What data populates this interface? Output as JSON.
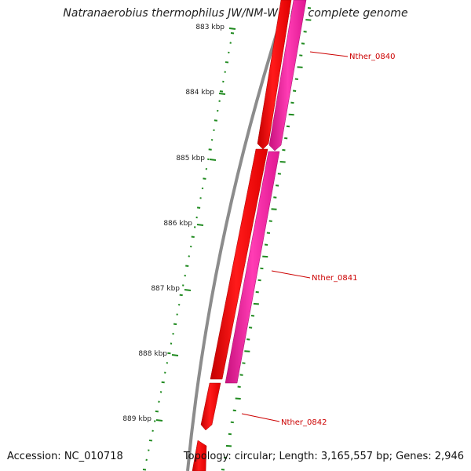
{
  "title": "Natranaerobius thermophilus JW/NM-WN-LF, complete genome",
  "accession": "Accession: NC_010718",
  "topology": "Topology: circular; Length: 3,165,557 bp; Genes: 2,946",
  "scale_labels": [
    "883 kbp",
    "884 kbp",
    "885 kbp",
    "886 kbp",
    "887 kbp",
    "888 kbp",
    "889 kbp"
  ],
  "genes": [
    {
      "name": "Nther_0840",
      "strand": "-",
      "color": "#ff0000"
    },
    {
      "name": "Nther_0840",
      "strand": "+",
      "color": "#ff1fa8"
    },
    {
      "name": "Nther_0841",
      "strand": "-",
      "color": "#ff0000"
    },
    {
      "name": "Nther_0841",
      "strand": "+",
      "color": "#ff1fa8"
    },
    {
      "name": "Nther_0842",
      "strand": "-",
      "color": "#ff0000"
    }
  ],
  "labels": [
    "Nther_0840",
    "Nther_0841",
    "Nther_0842"
  ],
  "colors": {
    "backbone": "#8c8c8c",
    "gc_skew": "#1f8a1f",
    "label_text": "#cc0000",
    "cds_minus": "#ff0000",
    "cds_plus": "#ff1fa8"
  }
}
